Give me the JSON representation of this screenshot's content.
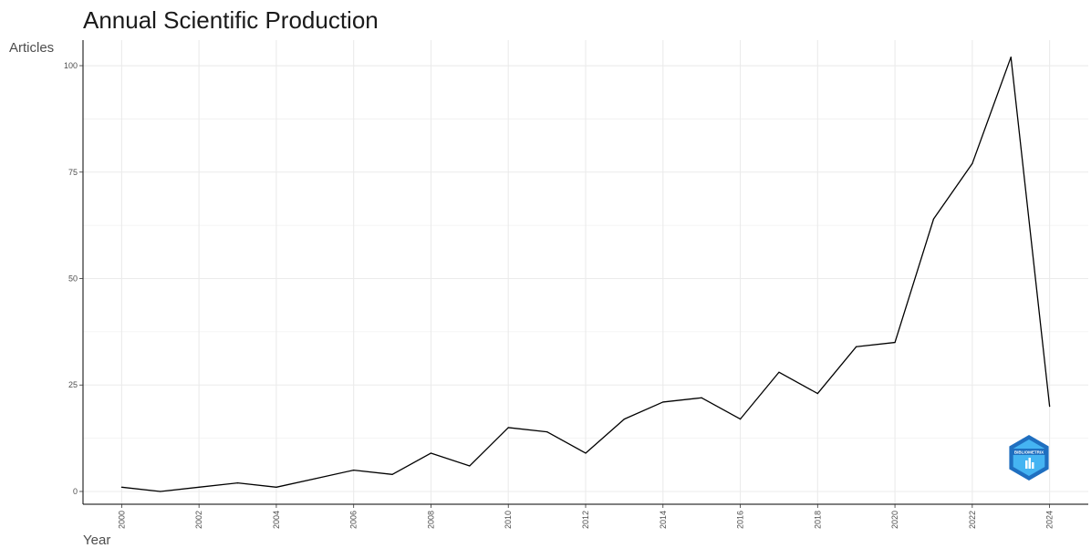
{
  "chart_data": {
    "type": "line",
    "title": "Annual Scientific Production",
    "xlabel": "Year",
    "ylabel": "Articles",
    "x": [
      2000,
      2001,
      2002,
      2003,
      2004,
      2005,
      2006,
      2007,
      2008,
      2009,
      2010,
      2011,
      2012,
      2013,
      2014,
      2015,
      2016,
      2017,
      2018,
      2019,
      2020,
      2021,
      2022,
      2023,
      2024
    ],
    "values": [
      1,
      0,
      1,
      2,
      1,
      3,
      5,
      4,
      9,
      6,
      15,
      14,
      9,
      17,
      21,
      22,
      17,
      28,
      23,
      34,
      35,
      64,
      77,
      102,
      20
    ],
    "xlim": [
      1999,
      2025
    ],
    "ylim": [
      -3,
      106
    ],
    "x_ticks": [
      "2000",
      "2002",
      "2004",
      "2006",
      "2008",
      "2010",
      "2012",
      "2014",
      "2016",
      "2018",
      "2020",
      "2022",
      "2024"
    ],
    "y_ticks": [
      "0",
      "25",
      "50",
      "75",
      "100"
    ],
    "grid": true,
    "line_color": "#000000",
    "grid_color": "#ebebeb"
  },
  "logo": {
    "text": "BIBLIOMETRIX",
    "colors": [
      "#1f6fc0",
      "#45b4f2"
    ]
  }
}
